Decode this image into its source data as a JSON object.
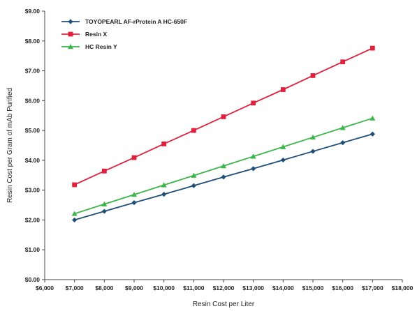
{
  "chart_data": {
    "type": "line",
    "xlabel": "Resin Cost per Liter",
    "ylabel": "Resin Cost per Gram of mAb Purified",
    "xlim": [
      6000,
      18000
    ],
    "ylim": [
      0,
      9
    ],
    "x_ticks": [
      6000,
      7000,
      8000,
      9000,
      10000,
      11000,
      12000,
      13000,
      14000,
      15000,
      16000,
      17000,
      18000
    ],
    "x_tick_labels": [
      "$6,000",
      "$7,000",
      "$8,000",
      "$9,000",
      "$10,000",
      "$11,000",
      "$12,000",
      "$13,000",
      "$14,000",
      "$15,000",
      "$16,000",
      "$17,000",
      "$18,000"
    ],
    "y_ticks": [
      0,
      1,
      2,
      3,
      4,
      5,
      6,
      7,
      8,
      9
    ],
    "y_tick_labels": [
      "$0.00",
      "$1.00",
      "$2.00",
      "$3.00",
      "$4.00",
      "$5.00",
      "$6.00",
      "$7.00",
      "$8.00",
      "$9.00"
    ],
    "grid": false,
    "legend_position": "top-left",
    "x": [
      7000,
      8000,
      9000,
      10000,
      11000,
      12000,
      13000,
      14000,
      15000,
      16000,
      17000
    ],
    "series": [
      {
        "name": "TOYOPEARL AF-rProtein A HC-650F",
        "color": "#1f4e79",
        "marker": "diamond",
        "values": [
          2.0,
          2.29,
          2.58,
          2.86,
          3.15,
          3.44,
          3.72,
          4.01,
          4.3,
          4.59,
          4.88
        ]
      },
      {
        "name": "Resin X",
        "color": "#e0203c",
        "marker": "square",
        "values": [
          3.18,
          3.64,
          4.09,
          4.55,
          5.0,
          5.46,
          5.92,
          6.37,
          6.84,
          7.3,
          7.76
        ]
      },
      {
        "name": "HC Resin Y",
        "color": "#3cb54a",
        "marker": "triangle",
        "values": [
          2.21,
          2.53,
          2.85,
          3.17,
          3.49,
          3.81,
          4.13,
          4.45,
          4.77,
          5.09,
          5.41
        ]
      }
    ]
  }
}
